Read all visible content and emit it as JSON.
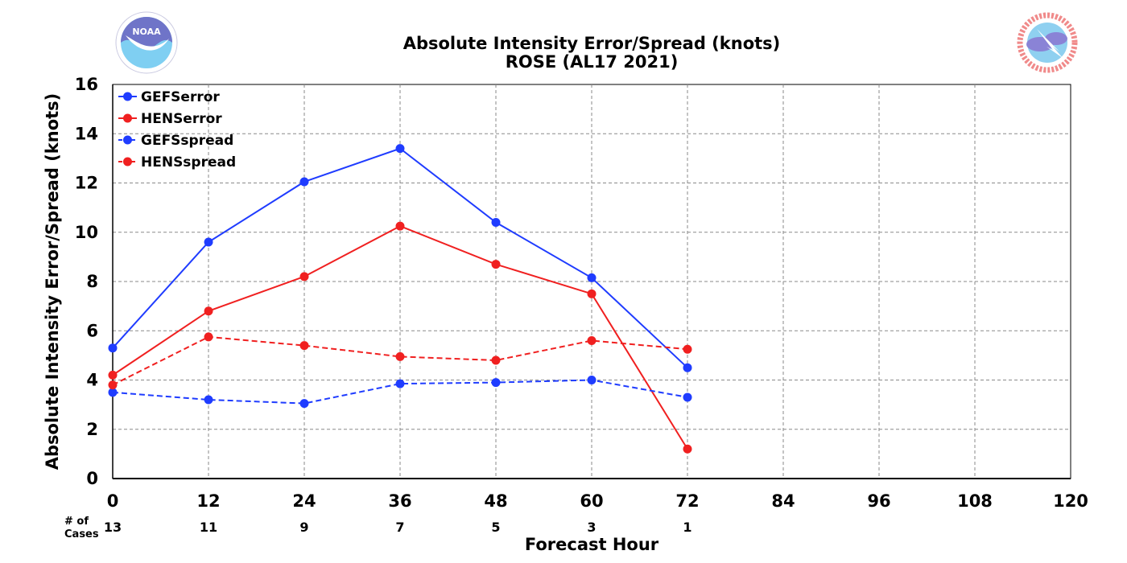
{
  "header": {
    "title_line1": "Absolute Intensity Error/Spread (knots)",
    "title_line2": "ROSE (AL17 2021)"
  },
  "logos": {
    "left": {
      "icon": "noaa-logo",
      "text": "NOAA",
      "colors": {
        "ring": "#ffffff",
        "sky": "#6f74c8",
        "sea": "#7fcff2"
      }
    },
    "right": {
      "icon": "nws-logo",
      "colors": {
        "ring": "#f08a8a",
        "inner": "#8fd0f0",
        "cloud": "#8a83d6"
      }
    }
  },
  "axes": {
    "x_label": "Forecast Hour",
    "y_label": "Absolute Intensity Error/Spread (knots)",
    "cases_label_line1": "# of",
    "cases_label_line2": "Cases"
  },
  "chart_data": {
    "type": "line",
    "title": "Absolute Intensity Error/Spread (knots)",
    "subtitle": "ROSE (AL17 2021)",
    "xlabel": "Forecast Hour",
    "ylabel": "Absolute Intensity Error/Spread (knots)",
    "xlim": [
      0,
      120
    ],
    "ylim": [
      0,
      16
    ],
    "x_ticks": [
      0,
      12,
      24,
      36,
      48,
      60,
      72,
      84,
      96,
      108,
      120
    ],
    "y_ticks": [
      0,
      2,
      4,
      6,
      8,
      10,
      12,
      14,
      16
    ],
    "grid": true,
    "legend_position": "top-left",
    "x": [
      0,
      12,
      24,
      36,
      48,
      60,
      72
    ],
    "cases": [
      13,
      11,
      9,
      7,
      5,
      3,
      1
    ],
    "series": [
      {
        "name": "GEFSerror",
        "color": "#1f3cff",
        "dashed": false,
        "values": [
          5.3,
          9.6,
          12.05,
          13.4,
          10.4,
          8.15,
          4.5
        ]
      },
      {
        "name": "HENSerror",
        "color": "#f02020",
        "dashed": false,
        "values": [
          4.2,
          6.8,
          8.2,
          10.25,
          8.7,
          7.5,
          1.2
        ]
      },
      {
        "name": "GEFSspread",
        "color": "#1f3cff",
        "dashed": true,
        "values": [
          3.5,
          3.2,
          3.05,
          3.85,
          3.9,
          4.0,
          3.3
        ]
      },
      {
        "name": "HENSspread",
        "color": "#f02020",
        "dashed": true,
        "values": [
          3.8,
          5.75,
          5.4,
          4.95,
          4.8,
          5.6,
          5.25
        ]
      }
    ]
  }
}
